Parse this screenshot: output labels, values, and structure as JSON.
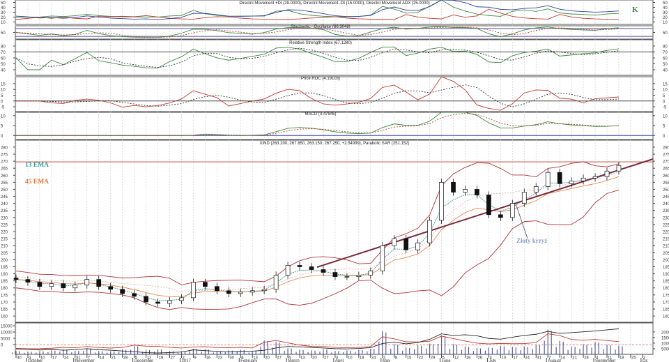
{
  "chart_data": {
    "type": "candlestick",
    "symbol": "XIND",
    "colors": {
      "price_red": "#c0392b",
      "ema13": "#3a9a9a",
      "ema45": "#e07a3a",
      "band": "#b03030",
      "trend": "#7a2a3a",
      "grid": "#c8c8c8",
      "purple": "#6a6ab0",
      "green": "#3a8a3a",
      "blue": "#3040a0",
      "annotation": "#8fa0c8"
    },
    "panels": {
      "adx": {
        "title": "Directnl Movement +DI (29.0000), Directnl Movement -DI (15.0000), Directnl Movement ADX (25.0000)",
        "ticks": [
          "50",
          "40",
          "30",
          "20",
          "10"
        ],
        "range": [
          5,
          55
        ]
      },
      "stoch": {
        "title": "Stochastic - Oscillator (86.3048)",
        "ticks": [
          "50"
        ],
        "range": [
          0,
          100
        ]
      },
      "rsi": {
        "title": "Relative Strength Index (67.1280)",
        "ticks": [
          "80",
          "70",
          "60",
          "50",
          "40"
        ],
        "range": [
          30.6,
          90.6
        ]
      },
      "roc": {
        "title": "Price ROC (4.19103)",
        "ticks": [
          "15",
          "10",
          "5",
          "0",
          "-5"
        ],
        "range": [
          -9.2,
          21
        ]
      },
      "macd": {
        "title": "MACD (3.47545)",
        "ticks": [
          "10",
          "5",
          "0"
        ],
        "range": [
          -2,
          11.7
        ]
      },
      "price": {
        "title": "XIND (263.200, 267.850, 263.150, 267.250, +2.54999), Parabolic SAR (251.152)",
        "ticks": [
          "280",
          "275",
          "270",
          "265",
          "260",
          "255",
          "250",
          "245",
          "240",
          "235",
          "230",
          "225",
          "220",
          "215",
          "210",
          "205",
          "200",
          "195",
          "190",
          "185",
          "180",
          "175",
          "170",
          "165",
          "160"
        ],
        "range": [
          155.6,
          284.9
        ]
      },
      "volume": {
        "left_ticks": [
          "15000",
          "10000",
          "5000",
          "0"
        ],
        "right_ticks": [
          "20000",
          "15000",
          "10000",
          "5000"
        ],
        "range": [
          0,
          28000
        ]
      }
    },
    "annotations": {
      "k_label": "K",
      "ema13_label": "13 EMA",
      "ema45_label": "45 EMA",
      "golden_cross": "Złoty krzyż",
      "resistance": 269.5
    },
    "x_ticks": [
      "30",
      "4",
      "10",
      "17",
      "24",
      "31",
      "7",
      "14",
      "21",
      "28",
      "5",
      "12",
      "19",
      "27",
      "2",
      "9",
      "16",
      "23",
      "30",
      "6",
      "13",
      "20",
      "27",
      "6",
      "13",
      "20",
      "27",
      "3",
      "10",
      "18",
      "24",
      "2",
      "8",
      "15",
      "22",
      "29",
      "5",
      "12",
      "19",
      "26",
      "3",
      "10",
      "17",
      "24",
      "31",
      "7",
      "14",
      "21",
      "28",
      "4",
      "11",
      "18",
      "25",
      "2"
    ],
    "months": [
      {
        "label": "October",
        "tick": 1
      },
      {
        "label": "November",
        "tick": 5
      },
      {
        "label": "December",
        "tick": 10
      },
      {
        "label": "2017",
        "tick": 14
      },
      {
        "label": "February",
        "tick": 19
      },
      {
        "label": "March",
        "tick": 23
      },
      {
        "label": "April",
        "tick": 27
      },
      {
        "label": "May",
        "tick": 31
      },
      {
        "label": "June",
        "tick": 36
      },
      {
        "label": "July",
        "tick": 40
      },
      {
        "label": "August",
        "tick": 45
      },
      {
        "label": "September",
        "tick": 49
      },
      {
        "label": "Oc",
        "tick": 53
      }
    ],
    "closes": [
      186,
      184,
      181,
      183,
      180,
      182,
      186,
      181,
      179,
      176,
      174,
      170,
      169,
      171,
      173,
      184,
      181,
      178,
      176,
      177,
      178,
      179,
      189,
      196,
      195,
      193,
      191,
      188,
      188,
      189,
      192,
      210,
      215,
      207,
      212,
      228,
      255,
      248,
      250,
      246,
      232,
      230,
      240,
      248,
      252,
      262,
      254,
      256,
      258,
      259,
      263,
      267
    ],
    "volumes": [
      3000,
      2500,
      2800,
      3500,
      4500,
      3200,
      5500,
      3000,
      2800,
      4200,
      7500,
      4000,
      4500,
      3000,
      2800,
      5000,
      4500,
      3000,
      3500,
      4000,
      3000,
      12500,
      11000,
      5500,
      4000,
      3500,
      4500,
      3000,
      3500,
      4000,
      5000,
      20500,
      9000,
      6000,
      8000,
      9500,
      17000,
      9000,
      7000,
      5500,
      6000,
      7500,
      6500,
      7000,
      8500,
      22000,
      12000,
      7000,
      9000,
      11000,
      8500,
      7500
    ]
  }
}
